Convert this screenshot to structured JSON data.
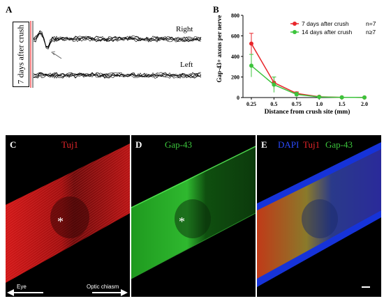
{
  "panelA": {
    "letter": "A",
    "side_label": "7 days after crush",
    "traces": [
      "Right",
      "Left"
    ]
  },
  "panelB": {
    "letter": "B",
    "legend": [
      {
        "label": "7 days after crush",
        "n": "n=7",
        "color": "#e8262b"
      },
      {
        "label": "14 days after crush",
        "n": "n≥7",
        "color": "#3cc43c"
      }
    ]
  },
  "panelC": {
    "letter": "C",
    "stain": "Tuj1",
    "marker": "*",
    "eye": "Eye",
    "chiasm": "Optic chiasm"
  },
  "panelD": {
    "letter": "D",
    "stain": "Gap-43",
    "marker": "*"
  },
  "panelE": {
    "letter": "E",
    "stain1": "DAPI",
    "stain2": "Tuj1",
    "stain3": "Gap-43"
  },
  "colors": {
    "red": "#e8262b",
    "green": "#3cc43c",
    "blue": "#2b4bff"
  },
  "chart_data": {
    "type": "line",
    "xlabel": "Distance from crush site (mm)",
    "ylabel": "Gap-43+ axons per nerve",
    "categories": [
      "0.25",
      "0.5",
      "0.75",
      "1.0",
      "1.5",
      "2.0"
    ],
    "ylim": [
      0,
      800
    ],
    "yticks": [
      0,
      200,
      400,
      600,
      800
    ],
    "series": [
      {
        "name": "7 days after crush",
        "values": [
          525,
          145,
          40,
          8,
          2,
          1
        ],
        "errors": [
          100,
          55,
          15,
          5,
          2,
          1
        ],
        "color": "#e8262b"
      },
      {
        "name": "14 days after crush",
        "values": [
          310,
          125,
          30,
          6,
          2,
          1
        ],
        "errors": [
          110,
          75,
          20,
          5,
          2,
          1
        ],
        "color": "#3cc43c"
      }
    ]
  }
}
